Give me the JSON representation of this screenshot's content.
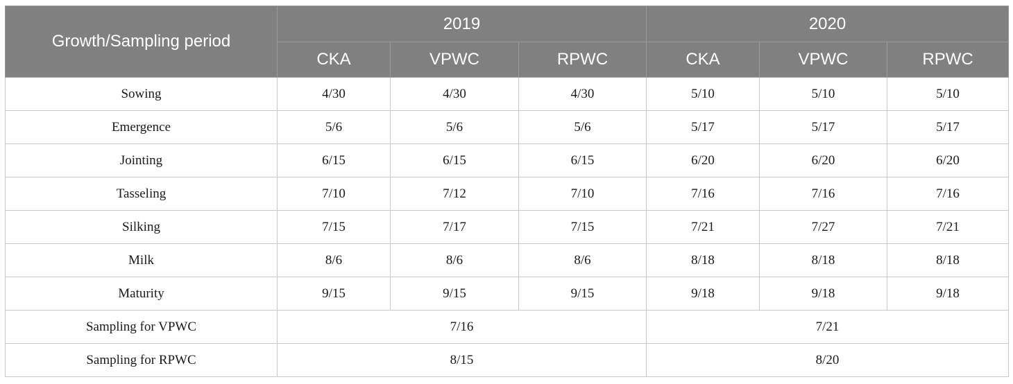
{
  "header": {
    "period_label": "Growth/Sampling period",
    "years": [
      "2019",
      "2020"
    ],
    "treatments": [
      "CKA",
      "VPWC",
      "RPWC",
      "CKA",
      "VPWC",
      "RPWC"
    ]
  },
  "rows": [
    {
      "label": "Sowing",
      "values": [
        "4/30",
        "4/30",
        "4/30",
        "5/10",
        "5/10",
        "5/10"
      ]
    },
    {
      "label": "Emergence",
      "values": [
        "5/6",
        "5/6",
        "5/6",
        "5/17",
        "5/17",
        "5/17"
      ]
    },
    {
      "label": "Jointing",
      "values": [
        "6/15",
        "6/15",
        "6/15",
        "6/20",
        "6/20",
        "6/20"
      ]
    },
    {
      "label": "Tasseling",
      "values": [
        "7/10",
        "7/12",
        "7/10",
        "7/16",
        "7/16",
        "7/16"
      ]
    },
    {
      "label": "Silking",
      "values": [
        "7/15",
        "7/17",
        "7/15",
        "7/21",
        "7/27",
        "7/21"
      ]
    },
    {
      "label": "Milk",
      "values": [
        "8/6",
        "8/6",
        "8/6",
        "8/18",
        "8/18",
        "8/18"
      ]
    },
    {
      "label": "Maturity",
      "values": [
        "9/15",
        "9/15",
        "9/15",
        "9/18",
        "9/18",
        "9/18"
      ]
    }
  ],
  "sampling_rows": [
    {
      "label": "Sampling for VPWC",
      "values": [
        "7/16",
        "7/21"
      ]
    },
    {
      "label": "Sampling for RPWC",
      "values": [
        "8/15",
        "8/20"
      ]
    }
  ]
}
